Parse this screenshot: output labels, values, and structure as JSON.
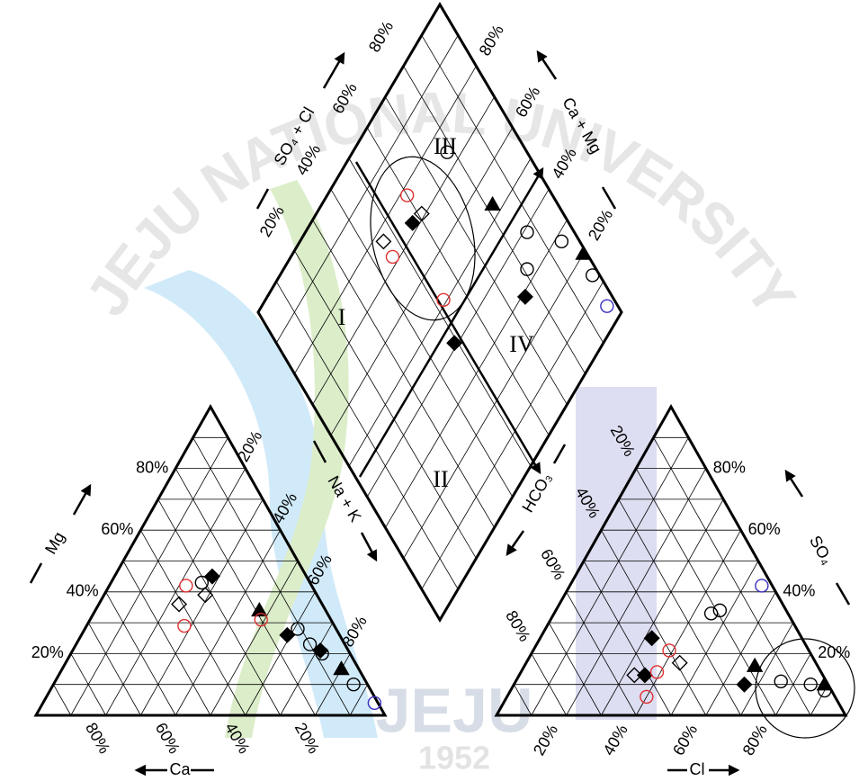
{
  "chart_data": {
    "type": "piper",
    "axes": {
      "mg": {
        "title": "Mg",
        "ticks": [
          {
            "value": 20,
            "label": "20%"
          },
          {
            "value": 40,
            "label": "40%"
          },
          {
            "value": 60,
            "label": "60%"
          },
          {
            "value": 80,
            "label": "80%"
          }
        ]
      },
      "ca": {
        "title": "Ca",
        "ticks": [
          {
            "value": 20,
            "label": "20%"
          },
          {
            "value": 40,
            "label": "40%"
          },
          {
            "value": 60,
            "label": "60%"
          },
          {
            "value": 80,
            "label": "80%"
          }
        ]
      },
      "nak": {
        "title": "Na + K",
        "ticks": [
          {
            "value": 20,
            "label": "20%"
          },
          {
            "value": 40,
            "label": "40%"
          },
          {
            "value": 60,
            "label": "60%"
          },
          {
            "value": 80,
            "label": "80%"
          }
        ]
      },
      "hco3": {
        "title": "HCO₃",
        "ticks": [
          {
            "value": 20,
            "label": "20%"
          },
          {
            "value": 40,
            "label": "40%"
          },
          {
            "value": 60,
            "label": "60%"
          },
          {
            "value": 80,
            "label": "80%"
          }
        ]
      },
      "so4": {
        "title": "SO₄",
        "ticks": [
          {
            "value": 20,
            "label": "20%"
          },
          {
            "value": 40,
            "label": "40%"
          },
          {
            "value": 60,
            "label": "60%"
          },
          {
            "value": 80,
            "label": "80%"
          }
        ]
      },
      "cl": {
        "title": "Cl",
        "ticks": [
          {
            "value": 20,
            "label": "20%"
          },
          {
            "value": 40,
            "label": "40%"
          },
          {
            "value": 60,
            "label": "60%"
          },
          {
            "value": 80,
            "label": "80%"
          }
        ]
      },
      "so4_cl": {
        "title": "SO₄ + Cl",
        "ticks": [
          {
            "value": 20,
            "label": "20%"
          },
          {
            "value": 40,
            "label": "40%"
          },
          {
            "value": 60,
            "label": "60%"
          },
          {
            "value": 80,
            "label": "80%"
          }
        ]
      },
      "ca_mg": {
        "title": "Ca + Mg",
        "ticks": [
          {
            "value": 20,
            "label": "20%"
          },
          {
            "value": 40,
            "label": "40%"
          },
          {
            "value": 60,
            "label": "60%"
          },
          {
            "value": 80,
            "label": "80%"
          }
        ]
      }
    },
    "gridlines": [
      10,
      20,
      30,
      40,
      50,
      60,
      70,
      80,
      90
    ],
    "regions": [
      "I",
      "II",
      "III",
      "IV"
    ],
    "series": [
      {
        "marker": "diamond",
        "filled": true,
        "color": "#000000",
        "samples": [
          {
            "ca": 27,
            "mg": 45,
            "nak": 28,
            "hco3": 43,
            "so4": 25,
            "cl": 32
          },
          {
            "ca": 15,
            "mg": 26,
            "nak": 59,
            "hco3": 51,
            "so4": 13,
            "cl": 36
          },
          {
            "ca": 8,
            "mg": 21,
            "nak": 71,
            "hco3": 24,
            "so4": 10,
            "cl": 66
          }
        ]
      },
      {
        "marker": "circle",
        "filled": false,
        "color": "#000000",
        "samples": [
          {
            "ca": 31,
            "mg": 43,
            "nak": 26,
            "hco3": 22,
            "so4": 33,
            "cl": 45
          },
          {
            "ca": 10,
            "mg": 23,
            "nak": 67,
            "hco3": 19,
            "so4": 34,
            "cl": 47
          },
          {
            "ca": 11,
            "mg": 28,
            "nak": 61,
            "hco3": 13,
            "so4": 11,
            "cl": 76
          },
          {
            "ca": 8,
            "mg": 20,
            "nak": 72,
            "hco3": 5,
            "so4": 10,
            "cl": 85
          },
          {
            "ca": 4,
            "mg": 10,
            "nak": 86,
            "hco3": 2,
            "so4": 8,
            "cl": 90
          }
        ]
      },
      {
        "marker": "triangle",
        "filled": true,
        "color": "#000000",
        "samples": [
          {
            "ca": 19,
            "mg": 34,
            "nak": 47,
            "hco3": 18,
            "so4": 16,
            "cl": 66
          },
          {
            "ca": 5,
            "mg": 15,
            "nak": 80,
            "hco3": 1,
            "so4": 10,
            "cl": 89
          }
        ]
      },
      {
        "marker": "circle",
        "filled": false,
        "color": "#e03030",
        "samples": [
          {
            "ca": 43,
            "mg": 29,
            "nak": 28,
            "hco3": 54,
            "so4": 6,
            "cl": 40
          },
          {
            "ca": 36,
            "mg": 42,
            "nak": 22,
            "hco3": 40,
            "so4": 21,
            "cl": 39
          },
          {
            "ca": 20,
            "mg": 31,
            "nak": 49,
            "hco3": 47,
            "so4": 14,
            "cl": 39
          }
        ]
      },
      {
        "marker": "diamond",
        "filled": false,
        "color": "#000000",
        "samples": [
          {
            "ca": 41,
            "mg": 36,
            "nak": 23,
            "hco3": 54,
            "so4": 13,
            "cl": 33
          },
          {
            "ca": 32,
            "mg": 39,
            "nak": 29,
            "hco3": 39,
            "so4": 17,
            "cl": 44
          }
        ]
      },
      {
        "marker": "circle",
        "filled": false,
        "color": "#3a30c0",
        "samples": [
          {
            "ca": 1,
            "mg": 4,
            "nak": 95,
            "hco3": 3,
            "so4": 42,
            "cl": 55
          }
        ]
      }
    ],
    "watermark": {
      "arc": "JEJU NATIONAL UNIVERSITY",
      "logo": "JEJU",
      "year": "1952"
    }
  }
}
